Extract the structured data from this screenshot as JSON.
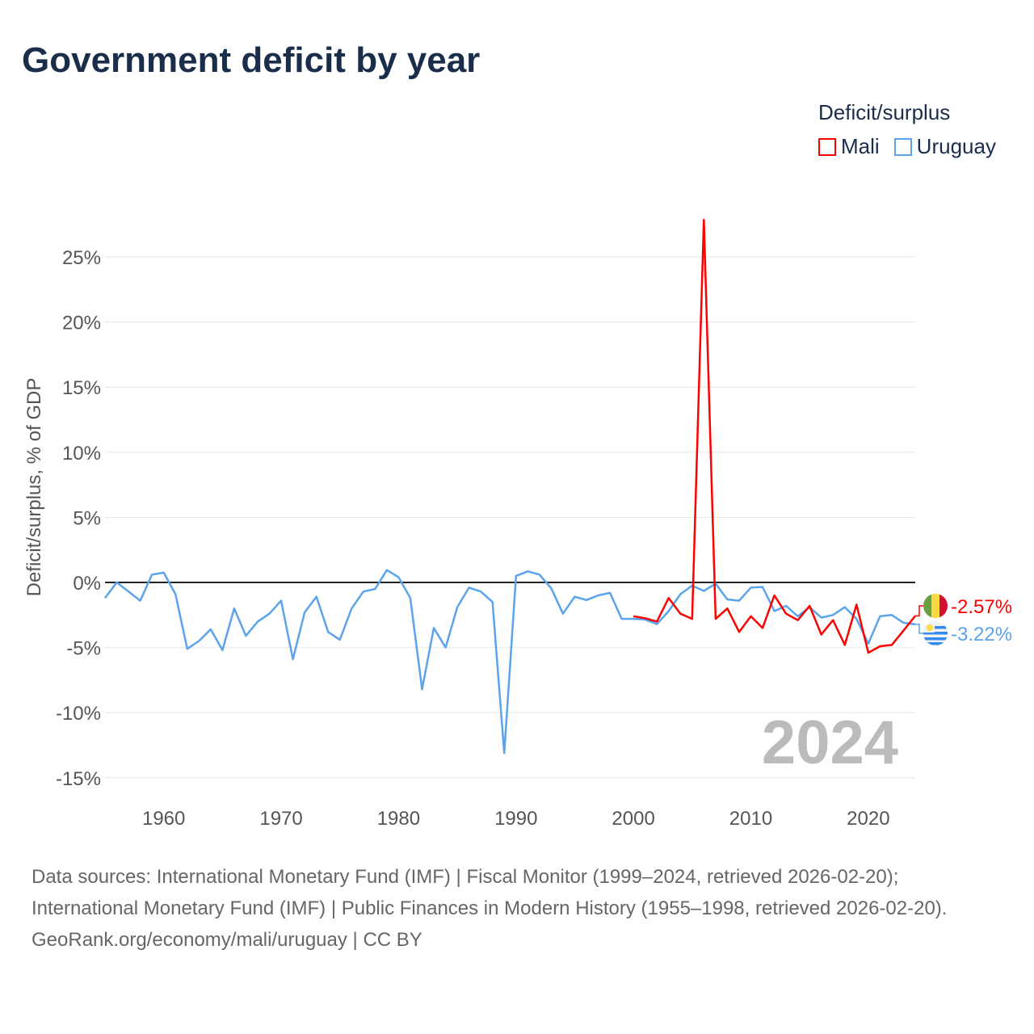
{
  "title": "Government deficit by year",
  "legend": {
    "title": "Deficit/surplus",
    "items": [
      {
        "name": "Mali",
        "color": "#ff0000"
      },
      {
        "name": "Uruguay",
        "color": "#5ba3ea"
      }
    ]
  },
  "watermark_year": "2024",
  "chart_data": {
    "type": "line",
    "title": "Government deficit by year",
    "xlabel": "",
    "ylabel": "Deficit/surplus, % of GDP",
    "xlim": [
      1955,
      2024
    ],
    "ylim": [
      -16,
      28
    ],
    "grid": true,
    "legend_position": "top-right",
    "x_ticks": [
      1960,
      1970,
      1980,
      1990,
      2000,
      2010,
      2020
    ],
    "y_ticks": [
      -15,
      -10,
      -5,
      0,
      5,
      10,
      15,
      20,
      25
    ],
    "y_tick_labels": [
      "-15%",
      "-10%",
      "-5%",
      "0%",
      "5%",
      "10%",
      "15%",
      "20%",
      "25%"
    ],
    "series": [
      {
        "name": "Uruguay",
        "color": "#5ba3ea",
        "end_label": "-3.22%",
        "x": [
          1955,
          1956,
          1957,
          1958,
          1959,
          1960,
          1961,
          1962,
          1963,
          1964,
          1965,
          1966,
          1967,
          1968,
          1969,
          1970,
          1971,
          1972,
          1973,
          1974,
          1975,
          1976,
          1977,
          1978,
          1979,
          1980,
          1981,
          1982,
          1983,
          1984,
          1985,
          1986,
          1987,
          1988,
          1989,
          1990,
          1991,
          1992,
          1993,
          1994,
          1995,
          1996,
          1997,
          1998,
          1999,
          2000,
          2001,
          2002,
          2003,
          2004,
          2005,
          2006,
          2007,
          2008,
          2009,
          2010,
          2011,
          2012,
          2013,
          2014,
          2015,
          2016,
          2017,
          2018,
          2019,
          2020,
          2021,
          2022,
          2023,
          2024
        ],
        "values": [
          -1.2,
          0,
          -0.7,
          -1.4,
          0.6,
          0.75,
          -0.9,
          -5.1,
          -4.5,
          -3.6,
          -5.2,
          -2.0,
          -4.1,
          -3.0,
          -2.4,
          -1.4,
          -5.9,
          -2.3,
          -1.1,
          -3.8,
          -4.4,
          -2.0,
          -0.7,
          -0.5,
          0.95,
          0.4,
          -1.2,
          -8.2,
          -3.5,
          -5.0,
          -1.9,
          -0.4,
          -0.7,
          -1.5,
          -13.1,
          0.5,
          0.85,
          0.6,
          -0.45,
          -2.4,
          -1.1,
          -1.35,
          -1.0,
          -0.8,
          -2.8,
          -2.8,
          -2.85,
          -3.2,
          -2.2,
          -0.9,
          -0.25,
          -0.65,
          -0.1,
          -1.3,
          -1.4,
          -0.4,
          -0.35,
          -2.2,
          -1.8,
          -2.6,
          -1.9,
          -2.7,
          -2.5,
          -1.9,
          -2.8,
          -4.7,
          -2.6,
          -2.5,
          -3.1,
          -3.22
        ]
      },
      {
        "name": "Mali",
        "color": "#ff0000",
        "end_label": "-2.57%",
        "x": [
          2000,
          2001,
          2002,
          2003,
          2004,
          2005,
          2006,
          2007,
          2008,
          2009,
          2010,
          2011,
          2012,
          2013,
          2014,
          2015,
          2016,
          2017,
          2018,
          2019,
          2020,
          2021,
          2022,
          2023,
          2024
        ],
        "values": [
          -2.6,
          -2.75,
          -3.0,
          -1.2,
          -2.4,
          -2.8,
          27.85,
          -2.8,
          -2.0,
          -3.8,
          -2.6,
          -3.5,
          -1.0,
          -2.4,
          -2.9,
          -1.8,
          -4.0,
          -2.9,
          -4.8,
          -1.7,
          -5.4,
          -4.9,
          -4.8,
          -3.7,
          -2.57
        ]
      }
    ]
  },
  "footer": {
    "sources": "Data sources: International Monetary Fund (IMF) | Fiscal Monitor (1999–2024, retrieved 2026-02-20); International Monetary Fund (IMF) | Public Finances in Modern History (1955–1998, retrieved 2026-02-20).",
    "credit": "GeoRank.org/economy/mali/uruguay | CC BY"
  }
}
